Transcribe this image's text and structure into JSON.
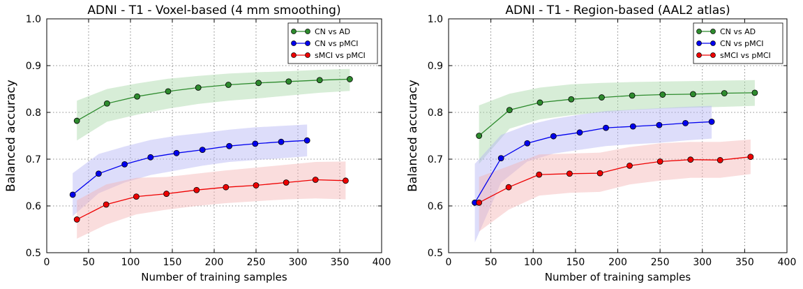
{
  "chart_data": [
    {
      "type": "line",
      "title": "ADNI - T1 - Voxel-based (4 mm smoothing)",
      "xlabel": "Number of training samples",
      "ylabel": "Balanced accuracy",
      "xlim": [
        0,
        400
      ],
      "ylim": [
        0.5,
        1.0
      ],
      "xticks": [
        "0",
        "50",
        "100",
        "150",
        "200",
        "250",
        "300",
        "350",
        "400"
      ],
      "yticks": [
        "0.5",
        "0.6",
        "0.7",
        "0.8",
        "0.9",
        "1.0"
      ],
      "grid": true,
      "legend_position": "top-right",
      "series": [
        {
          "name": "CN vs AD",
          "color": "#2e8b2e",
          "band_color": "#a6d8a6",
          "x": [
            36,
            72,
            108,
            145,
            181,
            217,
            253,
            289,
            326,
            362
          ],
          "y": [
            0.782,
            0.819,
            0.834,
            0.845,
            0.853,
            0.859,
            0.863,
            0.866,
            0.869,
            0.871
          ],
          "lower": [
            0.74,
            0.78,
            0.795,
            0.808,
            0.818,
            0.825,
            0.83,
            0.836,
            0.842,
            0.846
          ],
          "upper": [
            0.825,
            0.85,
            0.862,
            0.872,
            0.878,
            0.883,
            0.886,
            0.888,
            0.891,
            0.893
          ]
        },
        {
          "name": "CN vs pMCI",
          "color": "#0000ee",
          "band_color": "#b4b4f5",
          "x": [
            31,
            62,
            93,
            124,
            155,
            186,
            218,
            249,
            280,
            311
          ],
          "y": [
            0.624,
            0.669,
            0.689,
            0.704,
            0.713,
            0.72,
            0.728,
            0.733,
            0.737,
            0.74
          ],
          "lower": [
            0.578,
            0.627,
            0.65,
            0.666,
            0.676,
            0.686,
            0.694,
            0.698,
            0.702,
            0.706
          ],
          "upper": [
            0.67,
            0.711,
            0.727,
            0.741,
            0.75,
            0.756,
            0.763,
            0.768,
            0.771,
            0.774
          ]
        },
        {
          "name": "sMCI vs pMCI",
          "color": "#ee0000",
          "band_color": "#f5b4b4",
          "x": [
            36,
            71,
            107,
            143,
            179,
            214,
            250,
            286,
            321,
            357
          ],
          "y": [
            0.571,
            0.603,
            0.62,
            0.626,
            0.634,
            0.64,
            0.644,
            0.65,
            0.656,
            0.654
          ],
          "lower": [
            0.53,
            0.56,
            0.582,
            0.592,
            0.6,
            0.606,
            0.61,
            0.614,
            0.616,
            0.614
          ],
          "upper": [
            0.612,
            0.646,
            0.66,
            0.662,
            0.669,
            0.676,
            0.682,
            0.688,
            0.694,
            0.695
          ]
        }
      ]
    },
    {
      "type": "line",
      "title": "ADNI - T1 - Region-based (AAL2 atlas)",
      "xlabel": "Number of training samples",
      "ylabel": "Balanced accuracy",
      "xlim": [
        0,
        400
      ],
      "ylim": [
        0.5,
        1.0
      ],
      "xticks": [
        "0",
        "50",
        "100",
        "150",
        "200",
        "250",
        "300",
        "350",
        "400"
      ],
      "yticks": [
        "0.5",
        "0.6",
        "0.7",
        "0.8",
        "0.9",
        "1.0"
      ],
      "grid": true,
      "legend_position": "top-right",
      "series": [
        {
          "name": "CN vs AD",
          "color": "#2e8b2e",
          "band_color": "#a6d8a6",
          "x": [
            36,
            72,
            108,
            145,
            181,
            217,
            253,
            289,
            326,
            362
          ],
          "y": [
            0.75,
            0.805,
            0.821,
            0.828,
            0.832,
            0.836,
            0.838,
            0.839,
            0.841,
            0.842
          ],
          "lower": [
            0.69,
            0.765,
            0.785,
            0.794,
            0.8,
            0.805,
            0.808,
            0.81,
            0.812,
            0.814
          ],
          "upper": [
            0.815,
            0.84,
            0.853,
            0.86,
            0.863,
            0.865,
            0.866,
            0.867,
            0.868,
            0.869
          ]
        },
        {
          "name": "CN vs pMCI",
          "color": "#0000ee",
          "band_color": "#b4b4f5",
          "x": [
            31,
            62,
            93,
            124,
            155,
            186,
            218,
            249,
            280,
            311
          ],
          "y": [
            0.607,
            0.702,
            0.734,
            0.749,
            0.757,
            0.767,
            0.77,
            0.773,
            0.777,
            0.78
          ],
          "lower": [
            0.522,
            0.65,
            0.695,
            0.712,
            0.72,
            0.728,
            0.732,
            0.735,
            0.74,
            0.744
          ],
          "upper": [
            0.69,
            0.752,
            0.773,
            0.786,
            0.795,
            0.803,
            0.806,
            0.809,
            0.812,
            0.814
          ]
        },
        {
          "name": "sMCI vs pMCI",
          "color": "#ee0000",
          "band_color": "#f5b4b4",
          "x": [
            36,
            71,
            107,
            143,
            179,
            214,
            250,
            286,
            321,
            357
          ],
          "y": [
            0.607,
            0.64,
            0.667,
            0.669,
            0.67,
            0.686,
            0.695,
            0.699,
            0.698,
            0.705
          ],
          "lower": [
            0.545,
            0.592,
            0.622,
            0.628,
            0.63,
            0.646,
            0.654,
            0.66,
            0.66,
            0.668
          ],
          "upper": [
            0.662,
            0.685,
            0.71,
            0.712,
            0.714,
            0.726,
            0.734,
            0.737,
            0.737,
            0.742
          ]
        }
      ]
    }
  ]
}
